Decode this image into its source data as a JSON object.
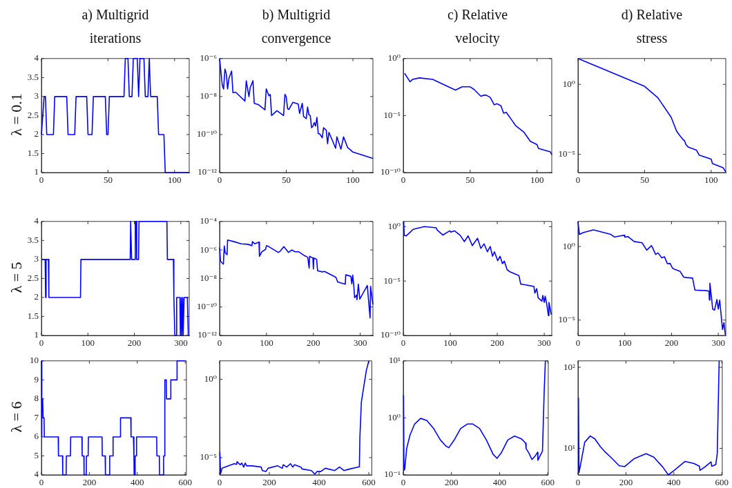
{
  "chart_data": [
    {
      "type": "line",
      "title": "a) Multigrid iterations",
      "ylabel": "λ = 0.1",
      "xlim": [
        0,
        111
      ],
      "xticks": [
        0,
        50,
        100
      ],
      "ylim": [
        1,
        4
      ],
      "yticks": [
        1,
        1.5,
        2,
        2.5,
        3,
        3.5,
        4
      ],
      "series": [
        {
          "color": "#0000ff",
          "x": [
            0,
            2,
            3,
            4,
            9,
            10,
            19,
            20,
            25,
            26,
            34,
            35,
            38,
            39,
            48,
            49,
            50,
            51,
            62,
            63,
            65,
            66,
            68,
            69,
            72,
            73,
            74,
            77,
            78,
            80,
            81,
            82,
            87,
            88,
            92,
            93,
            111
          ],
          "values": [
            2,
            3,
            3,
            2,
            2,
            3,
            3,
            2,
            2,
            3,
            3,
            2,
            2,
            3,
            3,
            2,
            2,
            3,
            3,
            4,
            4,
            3,
            3,
            4,
            4,
            3,
            4,
            4,
            3,
            3,
            4,
            3,
            3,
            2,
            2,
            1,
            1
          ]
        }
      ]
    },
    {
      "type": "line",
      "title": "b) Multigrid convergence",
      "log": "y",
      "xlim": [
        0,
        115
      ],
      "xticks": [
        0,
        50,
        100
      ],
      "ylim": [
        1e-12,
        1e-06
      ],
      "yticks": [
        {
          "value": 1e-12,
          "label": "10⁻¹²"
        },
        {
          "value": 1e-10,
          "label": "10⁻¹⁰"
        },
        {
          "value": 1e-08,
          "label": "10⁻⁸"
        },
        {
          "value": 1e-06,
          "label": "10⁻⁶"
        }
      ],
      "series": [
        {
          "color": "#0000ff",
          "x": [
            0,
            2,
            3,
            4,
            5,
            6,
            7,
            9,
            10,
            12,
            19,
            20,
            22,
            23,
            25,
            26,
            29,
            34,
            35,
            37,
            38,
            39,
            43,
            48,
            49,
            50,
            51,
            52,
            55,
            59,
            60,
            62,
            63,
            65,
            66,
            67,
            68,
            69,
            70,
            71,
            72,
            73,
            74,
            75,
            77,
            78,
            80,
            81,
            82,
            85,
            87,
            88,
            91,
            93,
            96,
            100,
            115
          ],
          "values": [
            1e-06,
            4e-08,
            2.5e-08,
            2.8e-07,
            1.6e-07,
            2.5e-08,
            9e-08,
            2.2e-07,
            1.6e-08,
            1.7e-08,
            5.8e-09,
            6.8e-08,
            1e-08,
            3e-08,
            6.8e-08,
            4.4e-09,
            3.8e-09,
            2e-09,
            2.5e-08,
            1.1e-08,
            1.3e-08,
            1e-09,
            1.8e-09,
            1e-09,
            1.3e-08,
            9.5e-09,
            2.3e-09,
            2.1e-09,
            5e-09,
            4e-09,
            1.3e-09,
            4.4e-09,
            9e-10,
            6.8e-10,
            2.8e-09,
            1.1e-09,
            1e-09,
            2.3e-10,
            2.7e-10,
            4.3e-10,
            2.8e-10,
            8e-10,
            1.1e-10,
            1.1e-10,
            6.8e-11,
            2.3e-10,
            1.7e-10,
            3.3e-11,
            1.3e-10,
            4.2e-11,
            1.9e-11,
            7.6e-11,
            1.7e-11,
            7.6e-11,
            2.1e-11,
            1.2e-11,
            5.6e-12
          ]
        }
      ]
    },
    {
      "type": "line",
      "title": "c) Relative velocity",
      "log": "y",
      "xlim": [
        0,
        111
      ],
      "xticks": [
        0,
        50,
        100
      ],
      "ylim": [
        1e-10,
        1
      ],
      "yticks": [
        {
          "value": 1e-10,
          "label": "10⁻¹⁰"
        },
        {
          "value": 1e-05,
          "label": "10⁻⁵"
        },
        {
          "value": 1,
          "label": "10⁰"
        }
      ],
      "series": [
        {
          "color": "#0000ff",
          "x": [
            1,
            5,
            7,
            12,
            22,
            31,
            39,
            44,
            50,
            53,
            58,
            60,
            62,
            65,
            68,
            70,
            73,
            75,
            77,
            81,
            84,
            90,
            95,
            100,
            101,
            110,
            111
          ],
          "values": [
            0.05,
            0.0093,
            0.015,
            0.02,
            0.015,
            0.0047,
            0.0017,
            0.0033,
            0.0033,
            0.0019,
            0.00049,
            0.00061,
            0.00061,
            0.00039,
            8.7e-05,
            0.00011,
            7.2e-05,
            1.6e-05,
            1.9e-05,
            4.2e-06,
            1.3e-06,
            3.7e-07,
            5.5e-08,
            2.8e-08,
            1.3e-08,
            6.5e-09,
            3.6e-09
          ]
        }
      ]
    },
    {
      "type": "line",
      "title": "d) Relative stress",
      "log": "y",
      "xlim": [
        0,
        111
      ],
      "xticks": [
        0,
        50,
        100
      ],
      "ylim": [
        5e-07,
        70
      ],
      "yticks": [
        {
          "value": 1e-05,
          "label": "10⁻⁵"
        },
        {
          "value": 1,
          "label": "10⁰"
        }
      ],
      "series": [
        {
          "color": "#0000ff",
          "x": [
            0,
            50,
            60,
            70,
            74,
            76,
            79,
            80,
            81,
            83,
            89,
            91,
            100,
            101,
            109,
            111
          ],
          "values": [
            70,
            0.72,
            0.11,
            0.0044,
            0.00047,
            0.00025,
            0.00011,
            9.6e-05,
            5.1e-05,
            3.2e-05,
            2e-05,
            8.9e-06,
            4.6e-06,
            2.2e-06,
            1.1e-06,
            5.5e-07
          ]
        }
      ]
    },
    {
      "type": "line",
      "ylabel": "λ = 5",
      "xlim": [
        0,
        318
      ],
      "xticks": [
        0,
        100,
        200,
        300
      ],
      "ylim": [
        1,
        4
      ],
      "yticks": [
        1,
        1.5,
        2,
        2.5,
        3,
        3.5,
        4
      ],
      "series": [
        {
          "color": "#0000ff",
          "x": [
            0,
            8,
            9,
            10,
            15,
            16,
            84,
            85,
            191,
            192,
            193,
            194,
            201,
            202,
            204,
            205,
            209,
            210,
            270,
            271,
            284,
            285,
            287,
            290,
            291,
            298,
            299,
            301,
            302,
            304,
            305,
            307,
            308,
            314,
            316
          ],
          "values": [
            3,
            3,
            2,
            3,
            3,
            2,
            2,
            3,
            3,
            4,
            4,
            3,
            3,
            4,
            4,
            3,
            3,
            4,
            4,
            3,
            3,
            2,
            1,
            1,
            2,
            2,
            1,
            2,
            1,
            2,
            1,
            2,
            2,
            2,
            1
          ]
        }
      ]
    },
    {
      "type": "line",
      "log": "y",
      "xlim": [
        0,
        327
      ],
      "xticks": [
        0,
        100,
        200,
        300
      ],
      "ylim": [
        1e-12,
        0.0001
      ],
      "yticks": [
        {
          "value": 1e-12,
          "label": "10⁻¹²"
        },
        {
          "value": 1e-10,
          "label": "10⁻¹⁰"
        },
        {
          "value": 1e-08,
          "label": "10⁻⁸"
        },
        {
          "value": 1e-06,
          "label": "10⁻⁶"
        },
        {
          "value": 0.0001,
          "label": "10⁻⁴"
        }
      ],
      "series": [
        {
          "color": "#0000ff",
          "x": [
            0,
            2,
            8,
            10,
            12,
            16,
            17,
            31,
            46,
            60,
            69,
            70,
            75,
            84,
            85,
            90,
            98,
            100,
            105,
            125,
            129,
            137,
            147,
            154,
            161,
            169,
            181,
            188,
            191,
            192,
            199,
            200,
            201,
            207,
            209,
            219,
            224,
            248,
            252,
            268,
            269,
            280,
            282,
            284,
            286,
            288,
            292,
            293,
            296,
            299,
            315,
            321,
            322,
            327
          ],
          "values": [
            1.5e-06,
            1.6e-07,
            1e-07,
            1.9e-06,
            6.3e-07,
            4.7e-07,
            4.9e-06,
            3.8e-06,
            2.7e-06,
            2.5e-06,
            2e-06,
            3.8e-06,
            2.7e-06,
            3.5e-06,
            3.6e-07,
            7.4e-07,
            1.1e-06,
            2e-06,
            1.7e-06,
            6.7e-07,
            8e-07,
            1.7e-06,
            6.7e-07,
            1e-06,
            7.4e-07,
            7.4e-07,
            4e-07,
            3e-07,
            5.4e-08,
            3.6e-07,
            2.7e-07,
            4.6e-08,
            2.7e-07,
            2.2e-07,
            3.5e-08,
            2.9e-08,
            3.1e-08,
            1.2e-08,
            5.6e-09,
            3.9e-09,
            1.8e-08,
            1.4e-08,
            4.2e-09,
            1.7e-08,
            3.9e-09,
            4.5e-10,
            6.8e-10,
            3.2e-10,
            4e-09,
            3.5e-10,
            3.2e-09,
            1.7e-11,
            2.8e-09,
            1.5e-10
          ]
        }
      ]
    },
    {
      "type": "line",
      "log": "y",
      "xlim": [
        0,
        316
      ],
      "xticks": [
        0,
        100,
        200,
        300
      ],
      "ylim": [
        1e-10,
        3
      ],
      "yticks": [
        {
          "value": 1e-10,
          "label": "10⁻¹⁰"
        },
        {
          "value": 1e-05,
          "label": "10⁻⁵"
        },
        {
          "value": 1,
          "label": "10⁰"
        }
      ],
      "series": [
        {
          "color": "#0000ff",
          "x": [
            1,
            2,
            6,
            12,
            21,
            45,
            70,
            72,
            84,
            99,
            101,
            109,
            121,
            130,
            138,
            147,
            158,
            165,
            172,
            179,
            185,
            190,
            194,
            201,
            206,
            211,
            215,
            221,
            227,
            246,
            250,
            253,
            278,
            280,
            284,
            287,
            295,
            297,
            300,
            302,
            305,
            309,
            310,
            315
          ],
          "values": [
            2.9,
            0.16,
            0.14,
            0.24,
            0.56,
            1,
            0.79,
            0.49,
            0.17,
            0.41,
            0.32,
            0.41,
            0.16,
            0.042,
            0.14,
            0.018,
            0.085,
            0.01,
            0.026,
            0.0049,
            0.015,
            0.0019,
            0.0049,
            0.00074,
            0.0019,
            0.0004,
            0.00068,
            0.00011,
            7e-05,
            3.2e-05,
            5.1e-06,
            5.1e-06,
            3.2e-06,
            7.8e-07,
            2e-06,
            2.9e-07,
            1.4e-07,
            4.7e-07,
            1.1e-07,
            4.1e-07,
            8.9e-08,
            6.6e-09,
            1.1e-07,
            8.3e-09
          ]
        }
      ]
    },
    {
      "type": "line",
      "log": "y",
      "xlim": [
        0,
        316
      ],
      "xticks": [
        0,
        100,
        200,
        300
      ],
      "ylim": [
        9e-07,
        51
      ],
      "yticks": [
        {
          "value": 1e-05,
          "label": "10⁻⁵"
        },
        {
          "value": 1,
          "label": "10⁰"
        }
      ],
      "series": [
        {
          "color": "#0000ff",
          "x": [
            0,
            3,
            11,
            33,
            70,
            78,
            88,
            99,
            100,
            107,
            120,
            137,
            147,
            157,
            159,
            166,
            171,
            179,
            185,
            191,
            197,
            202,
            208,
            218,
            226,
            233,
            245,
            250,
            275,
            280,
            281,
            282,
            286,
            288,
            292,
            297,
            300,
            303,
            309,
            312,
            315
          ],
          "values": [
            50,
            6.7,
            8.9,
            13.5,
            6.7,
            4.4,
            5.2,
            5.8,
            4.4,
            4.7,
            2.2,
            1.8,
            0.57,
            1.15,
            0.9,
            0.29,
            0.37,
            0.17,
            0.2,
            0.069,
            0.071,
            0.034,
            0.027,
            0.021,
            0.0083,
            0.0078,
            0.0072,
            0.0011,
            0.001,
            0.00093,
            0.00023,
            0.0032,
            0.00023,
            5.6e-05,
            4.7e-05,
            0.00025,
            5.6e-05,
            0.00023,
            2.3e-06,
            6.8e-06,
            9.8e-07
          ]
        }
      ]
    },
    {
      "type": "line",
      "ylabel": "λ = 6",
      "xlim": [
        0,
        605
      ],
      "xticks": [
        0,
        200,
        400,
        600
      ],
      "ylim": [
        4,
        10
      ],
      "yticks": [
        4,
        5,
        6,
        7,
        8,
        9,
        10
      ],
      "series": [
        {
          "color": "#0000ff",
          "x": [
            0,
            1,
            2,
            5,
            7,
            11,
            12,
            70,
            71,
            88,
            89,
            103,
            104,
            121,
            122,
            169,
            170,
            177,
            178,
            187,
            188,
            195,
            196,
            253,
            254,
            266,
            267,
            284,
            285,
            298,
            299,
            329,
            330,
            373,
            374,
            384,
            386,
            387,
            390,
            391,
            396,
            397,
            481,
            482,
            492,
            493,
            509,
            510,
            514,
            515,
            521,
            522,
            539,
            540,
            565,
            566,
            597
          ],
          "values": [
            10,
            6,
            8,
            8,
            7,
            7,
            6,
            6,
            5,
            5,
            4,
            4,
            5,
            5,
            6,
            6,
            5,
            5,
            4,
            4,
            5,
            5,
            6,
            6,
            5,
            5,
            4,
            4,
            5,
            5,
            6,
            6,
            7,
            7,
            6,
            6,
            5,
            4,
            4,
            5,
            5,
            6,
            6,
            5,
            5,
            4,
            4,
            5,
            5,
            9,
            9,
            8,
            8,
            9,
            9,
            10,
            10
          ]
        }
      ]
    },
    {
      "type": "line",
      "log": "y",
      "xlim": [
        0,
        612
      ],
      "xticks": [
        0,
        200,
        400,
        600
      ],
      "ylim": [
        7.9e-07,
        15
      ],
      "yticks": [
        {
          "value": 1e-05,
          "label": "10⁻⁵"
        },
        {
          "value": 1,
          "label": "10⁰"
        }
      ],
      "series": [
        {
          "color": "#0000ff",
          "x": [
            1,
            4,
            7,
            10,
            59,
            69,
            70,
            83,
            89,
            97,
            103,
            109,
            130,
            167,
            172,
            186,
            195,
            233,
            252,
            256,
            270,
            285,
            294,
            301,
            327,
            331,
            369,
            383,
            392,
            407,
            425,
            463,
            482,
            500,
            519,
            562,
            564,
            570,
            590,
            600
          ],
          "values": [
            2.3e-05,
            9.3e-07,
            1.4e-06,
            2.1e-06,
            4.1e-06,
            3.7e-06,
            5.6e-06,
            3.5e-06,
            4.5e-06,
            2.5e-06,
            4.5e-06,
            3e-06,
            3e-06,
            2.5e-06,
            1.5e-06,
            1.3e-06,
            2.1e-06,
            3e-06,
            2.1e-06,
            3.5e-06,
            2.5e-06,
            4.1e-06,
            2.5e-06,
            3.5e-06,
            2.5e-06,
            1.9e-06,
            1.5e-06,
            8.7e-07,
            1.3e-06,
            1.3e-06,
            2.1e-06,
            1.5e-06,
            2.5e-06,
            1.5e-06,
            1.8e-06,
            2.6e-06,
            0.00018,
            0.036,
            3.7,
            15
          ]
        }
      ]
    },
    {
      "type": "line",
      "log": "y",
      "xlim": [
        0,
        602
      ],
      "xticks": [
        0,
        200,
        400,
        600
      ],
      "ylim": [
        0.1,
        10
      ],
      "yticks": [
        {
          "value": 0.1,
          "label": "10⁻¹"
        },
        {
          "value": 1,
          "label": "10⁰"
        },
        {
          "value": 10,
          "label": "10¹"
        }
      ],
      "series": [
        {
          "color": "#0000ff",
          "x": [
            1,
            3,
            6,
            14,
            28,
            47,
            72,
            98,
            126,
            154,
            177,
            189,
            210,
            238,
            266,
            289,
            317,
            345,
            373,
            389,
            406,
            434,
            462,
            490,
            508,
            510,
            522,
            534,
            546,
            558,
            559,
            569,
            578,
            585,
            590
          ],
          "values": [
            2.5,
            0.12,
            0.126,
            0.29,
            0.5,
            0.78,
            0.98,
            0.9,
            0.65,
            0.41,
            0.32,
            0.3,
            0.4,
            0.65,
            0.78,
            0.78,
            0.65,
            0.41,
            0.23,
            0.195,
            0.24,
            0.41,
            0.48,
            0.43,
            0.36,
            0.29,
            0.24,
            0.186,
            0.21,
            0.25,
            0.18,
            0.22,
            0.26,
            2.8,
            10
          ]
        }
      ]
    },
    {
      "type": "line",
      "log": "y",
      "xlim": [
        0,
        602
      ],
      "xticks": [
        0,
        200,
        400,
        600
      ],
      "ylim": [
        4.7,
        120
      ],
      "yticks": [
        {
          "value": 10,
          "label": "10¹"
        },
        {
          "value": 100,
          "label": "10²"
        }
      ],
      "series": [
        {
          "color": "#0000ff",
          "x": [
            2,
            4,
            9,
            28,
            51,
            70,
            93,
            112,
            140,
            172,
            195,
            233,
            284,
            316,
            353,
            377,
            400,
            447,
            484,
            507,
            509,
            530,
            555,
            558,
            575,
            581,
            589
          ],
          "values": [
            42,
            5,
            5.9,
            11.9,
            14.2,
            13.1,
            10.5,
            9.1,
            7.6,
            6.1,
            5.95,
            7.4,
            8.6,
            7.8,
            5.9,
            4.7,
            5.3,
            6.9,
            6.5,
            6,
            5.35,
            5.9,
            6.8,
            6,
            6.3,
            8.6,
            120
          ]
        }
      ]
    }
  ]
}
